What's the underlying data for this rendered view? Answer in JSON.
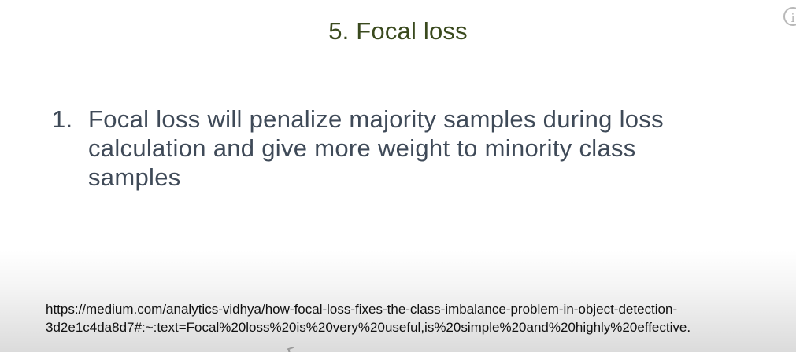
{
  "slide": {
    "title": "5. Focal loss",
    "bullets": [
      {
        "number": "1.",
        "text": "Focal loss will penalize majority samples during loss calculation and give more weight to minority class samples"
      }
    ],
    "reference_line1": "https://medium.com/analytics-vidhya/how-focal-loss-fixes-the-class-imbalance-problem-in-object-detection-",
    "reference_line2": "3d2e1c4da8d7#:~:text=Focal%20loss%20is%20very%20useful,is%20simple%20and%20highly%20effective."
  },
  "overlay": {
    "info_icon": "info-icon",
    "info_glyph": "i"
  }
}
